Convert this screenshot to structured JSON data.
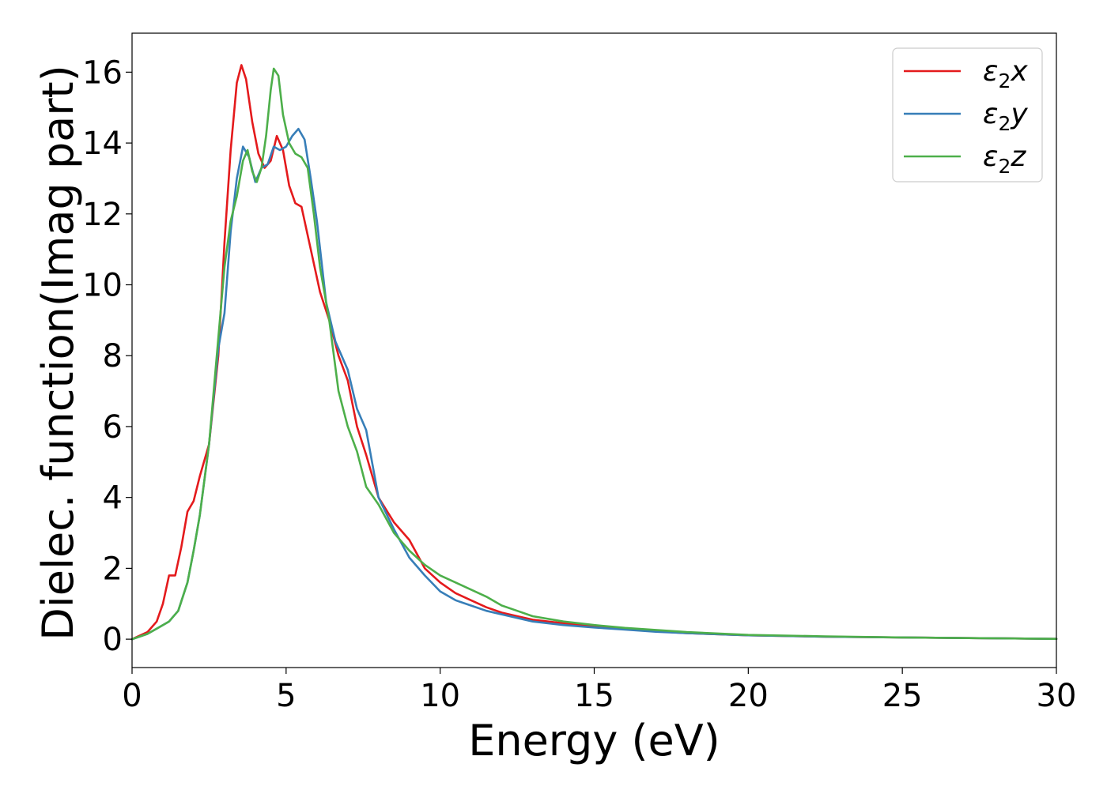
{
  "chart_data": {
    "type": "line",
    "title": "",
    "xlabel": "Energy (eV)",
    "ylabel": "Dielec. function(Imag part)",
    "xlim": [
      0,
      30
    ],
    "ylim": [
      -0.8,
      17.1
    ],
    "xticks": [
      0,
      5,
      10,
      15,
      20,
      25,
      30
    ],
    "yticks": [
      0,
      2,
      4,
      6,
      8,
      10,
      12,
      14,
      16
    ],
    "grid": false,
    "legend_position": "top-right",
    "series": [
      {
        "name": "ε₂x",
        "label_base": "ε",
        "label_sub": "2",
        "label_suffix": "x",
        "color": "#e41a1c",
        "x": [
          0,
          0.5,
          0.8,
          1.0,
          1.2,
          1.4,
          1.6,
          1.8,
          2.0,
          2.2,
          2.5,
          2.8,
          3.0,
          3.2,
          3.4,
          3.55,
          3.7,
          3.9,
          4.1,
          4.3,
          4.5,
          4.7,
          4.9,
          5.1,
          5.3,
          5.5,
          5.8,
          6.1,
          6.4,
          6.7,
          7.0,
          7.3,
          7.6,
          8.0,
          8.5,
          9.0,
          9.5,
          10.0,
          10.5,
          11.0,
          11.5,
          12.0,
          12.5,
          13.0,
          14.0,
          15.0,
          16.0,
          17.0,
          18.0,
          20.0,
          22.5,
          25.0,
          27.5,
          30.0
        ],
        "y": [
          0,
          0.2,
          0.5,
          1.0,
          1.8,
          1.8,
          2.6,
          3.6,
          3.9,
          4.6,
          5.5,
          8.0,
          11.2,
          13.8,
          15.7,
          16.2,
          15.8,
          14.6,
          13.7,
          13.3,
          13.5,
          14.2,
          13.8,
          12.8,
          12.3,
          12.2,
          11.0,
          9.8,
          9.0,
          8.0,
          7.3,
          6.0,
          5.2,
          4.0,
          3.3,
          2.8,
          2.0,
          1.6,
          1.3,
          1.1,
          0.9,
          0.75,
          0.65,
          0.55,
          0.45,
          0.35,
          0.28,
          0.22,
          0.17,
          0.11,
          0.07,
          0.05,
          0.03,
          0.01
        ]
      },
      {
        "name": "ε₂y",
        "label_base": "ε",
        "label_sub": "2",
        "label_suffix": "y",
        "color": "#377eb8",
        "x": [
          0,
          0.5,
          0.8,
          1.0,
          1.2,
          1.5,
          1.8,
          2.0,
          2.2,
          2.5,
          2.8,
          3.0,
          3.2,
          3.4,
          3.6,
          3.8,
          4.0,
          4.2,
          4.4,
          4.6,
          4.8,
          5.0,
          5.2,
          5.4,
          5.6,
          5.8,
          6.0,
          6.3,
          6.6,
          7.0,
          7.3,
          7.6,
          8.0,
          8.5,
          9.0,
          9.5,
          10.0,
          10.5,
          11.0,
          11.5,
          12.0,
          12.5,
          13.0,
          14.0,
          15.0,
          16.0,
          17.0,
          18.0,
          20.0,
          22.5,
          25.0,
          27.5,
          30.0
        ],
        "y": [
          0,
          0.15,
          0.3,
          0.4,
          0.5,
          0.8,
          1.6,
          2.5,
          3.5,
          5.5,
          8.2,
          9.2,
          11.5,
          13.0,
          13.9,
          13.6,
          12.9,
          13.3,
          13.4,
          13.9,
          13.8,
          13.9,
          14.2,
          14.4,
          14.1,
          13.0,
          11.8,
          9.5,
          8.4,
          7.6,
          6.5,
          5.9,
          4.0,
          3.1,
          2.3,
          1.8,
          1.35,
          1.1,
          0.95,
          0.8,
          0.7,
          0.6,
          0.5,
          0.4,
          0.33,
          0.27,
          0.21,
          0.17,
          0.11,
          0.07,
          0.05,
          0.03,
          0.01
        ]
      },
      {
        "name": "ε₂z",
        "label_base": "ε",
        "label_sub": "2",
        "label_suffix": "z",
        "color": "#4daf4a",
        "x": [
          0,
          0.5,
          0.8,
          1.0,
          1.2,
          1.5,
          1.8,
          2.0,
          2.2,
          2.5,
          2.8,
          3.0,
          3.2,
          3.4,
          3.6,
          3.75,
          3.9,
          4.05,
          4.2,
          4.35,
          4.5,
          4.6,
          4.75,
          4.9,
          5.1,
          5.3,
          5.5,
          5.7,
          5.9,
          6.1,
          6.4,
          6.7,
          7.0,
          7.3,
          7.6,
          8.0,
          8.5,
          9.0,
          9.5,
          10.0,
          10.5,
          11.0,
          11.5,
          12.0,
          12.5,
          13.0,
          14.0,
          15.0,
          16.0,
          17.0,
          18.0,
          20.0,
          22.5,
          25.0,
          27.5,
          30.0
        ],
        "y": [
          0,
          0.15,
          0.3,
          0.4,
          0.5,
          0.8,
          1.6,
          2.5,
          3.5,
          5.5,
          8.5,
          10.5,
          11.8,
          12.5,
          13.5,
          13.8,
          13.2,
          12.9,
          13.3,
          14.2,
          15.5,
          16.1,
          15.9,
          14.8,
          14.0,
          13.7,
          13.6,
          13.3,
          12.0,
          10.5,
          9.0,
          7.0,
          6.0,
          5.3,
          4.3,
          3.8,
          3.0,
          2.5,
          2.1,
          1.8,
          1.6,
          1.4,
          1.2,
          0.95,
          0.8,
          0.65,
          0.5,
          0.4,
          0.32,
          0.26,
          0.2,
          0.12,
          0.08,
          0.05,
          0.03,
          0.01
        ]
      }
    ]
  }
}
